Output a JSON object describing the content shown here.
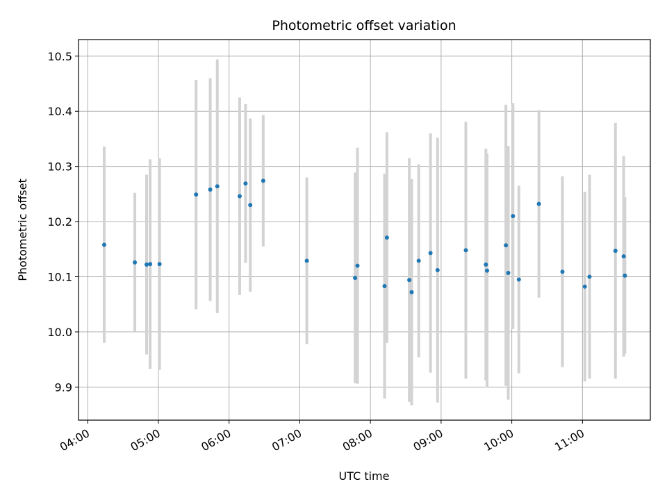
{
  "chart_data": {
    "type": "scatter",
    "title": "Photometric offset variation",
    "xlabel": "UTC time",
    "ylabel": "Photometric offset",
    "x_ticks": [
      "04:00",
      "05:00",
      "06:00",
      "07:00",
      "08:00",
      "09:00",
      "10:00",
      "11:00"
    ],
    "x_tick_hours": [
      4,
      5,
      6,
      7,
      8,
      9,
      10,
      11
    ],
    "y_ticks": [
      9.9,
      10.0,
      10.1,
      10.2,
      10.3,
      10.4,
      10.5
    ],
    "xlim_hours": [
      3.87,
      11.96
    ],
    "ylim": [
      9.84,
      10.53
    ],
    "grid": true,
    "colors": {
      "point": "#1f77b4",
      "errorbar": "#d3d3d3",
      "grid": "#b0b0b0"
    },
    "points": [
      {
        "t": "04:14",
        "y": 10.158,
        "err": 0.178
      },
      {
        "t": "04:40",
        "y": 10.126,
        "err": 0.126
      },
      {
        "t": "04:50",
        "y": 10.122,
        "err": 0.163
      },
      {
        "t": "04:53",
        "y": 10.123,
        "err": 0.19
      },
      {
        "t": "05:01",
        "y": 10.123,
        "err": 0.192
      },
      {
        "t": "05:32",
        "y": 10.249,
        "err": 0.208
      },
      {
        "t": "05:44",
        "y": 10.258,
        "err": 0.202
      },
      {
        "t": "05:50",
        "y": 10.264,
        "err": 0.23
      },
      {
        "t": "06:09",
        "y": 10.246,
        "err": 0.179
      },
      {
        "t": "06:14",
        "y": 10.269,
        "err": 0.144
      },
      {
        "t": "06:18",
        "y": 10.23,
        "err": 0.157
      },
      {
        "t": "06:29",
        "y": 10.274,
        "err": 0.119
      },
      {
        "t": "07:06",
        "y": 10.129,
        "err": 0.151
      },
      {
        "t": "07:47",
        "y": 10.098,
        "err": 0.191
      },
      {
        "t": "07:49",
        "y": 10.12,
        "err": 0.214
      },
      {
        "t": "08:12",
        "y": 10.083,
        "err": 0.204
      },
      {
        "t": "08:14",
        "y": 10.171,
        "err": 0.191
      },
      {
        "t": "08:33",
        "y": 10.094,
        "err": 0.221
      },
      {
        "t": "08:35",
        "y": 10.072,
        "err": 0.205
      },
      {
        "t": "08:41",
        "y": 10.129,
        "err": 0.175
      },
      {
        "t": "08:51",
        "y": 10.143,
        "err": 0.217
      },
      {
        "t": "08:57",
        "y": 10.112,
        "err": 0.24
      },
      {
        "t": "09:21",
        "y": 10.148,
        "err": 0.233
      },
      {
        "t": "09:38",
        "y": 10.122,
        "err": 0.21
      },
      {
        "t": "09:39",
        "y": 10.111,
        "err": 0.212
      },
      {
        "t": "09:55",
        "y": 10.157,
        "err": 0.255
      },
      {
        "t": "09:57",
        "y": 10.107,
        "err": 0.23
      },
      {
        "t": "10:01",
        "y": 10.21,
        "err": 0.205
      },
      {
        "t": "10:06",
        "y": 10.095,
        "err": 0.17
      },
      {
        "t": "10:23",
        "y": 10.232,
        "err": 0.17
      },
      {
        "t": "10:43",
        "y": 10.109,
        "err": 0.173
      },
      {
        "t": "11:02",
        "y": 10.082,
        "err": 0.172
      },
      {
        "t": "11:06",
        "y": 10.1,
        "err": 0.185
      },
      {
        "t": "11:28",
        "y": 10.147,
        "err": 0.232
      },
      {
        "t": "11:35",
        "y": 10.137,
        "err": 0.182
      },
      {
        "t": "11:36",
        "y": 10.102,
        "err": 0.142
      }
    ]
  }
}
